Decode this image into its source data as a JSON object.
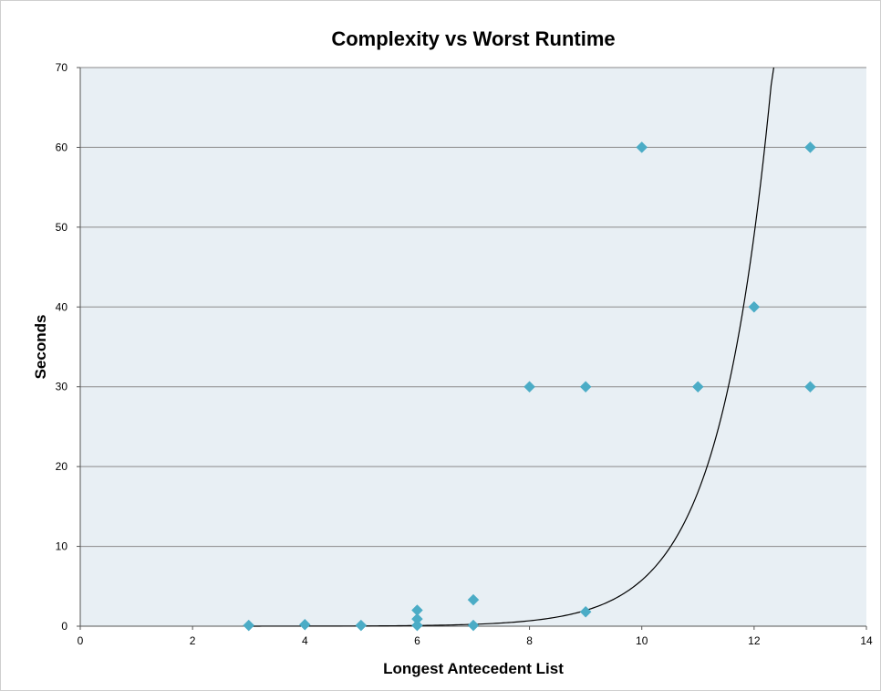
{
  "chart_data": {
    "type": "scatter",
    "title": "Complexity vs Worst Runtime",
    "xlabel": "Longest Antecedent List",
    "ylabel": "Seconds",
    "xlim": [
      0,
      14
    ],
    "ylim": [
      0,
      70
    ],
    "x_ticks": [
      0,
      2,
      4,
      6,
      8,
      10,
      12,
      14
    ],
    "y_ticks": [
      0,
      10,
      20,
      30,
      40,
      50,
      60,
      70
    ],
    "grid": "horizontal",
    "legend": "none",
    "series": [
      {
        "marker": "diamond",
        "color": "#4bacc6",
        "points": [
          {
            "x": 3,
            "y": 0.1
          },
          {
            "x": 4,
            "y": 0.2
          },
          {
            "x": 5,
            "y": 0.1
          },
          {
            "x": 6,
            "y": 2.0
          },
          {
            "x": 6,
            "y": 0.9
          },
          {
            "x": 6,
            "y": 0.1
          },
          {
            "x": 7,
            "y": 3.3
          },
          {
            "x": 7,
            "y": 0.1
          },
          {
            "x": 8,
            "y": 30
          },
          {
            "x": 9,
            "y": 30
          },
          {
            "x": 9,
            "y": 1.8
          },
          {
            "x": 10,
            "y": 60
          },
          {
            "x": 11,
            "y": 30
          },
          {
            "x": 12,
            "y": 40
          },
          {
            "x": 13,
            "y": 60
          },
          {
            "x": 13,
            "y": 30
          }
        ]
      }
    ],
    "trendline": {
      "type": "exponential",
      "color": "#000000",
      "x_range": [
        3,
        12.35
      ],
      "a": 0.00013,
      "b": 1.07
    },
    "colors": {
      "plot_background": "#e8eff4",
      "gridline": "#8a8a8a",
      "marker": "#4bacc6"
    }
  }
}
